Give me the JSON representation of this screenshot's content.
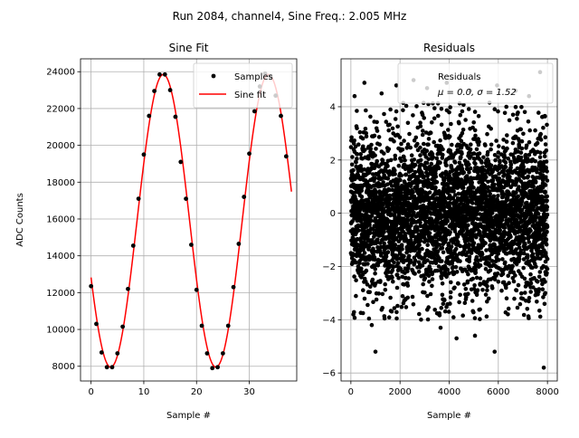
{
  "suptitle": "Run 2084, channel4, Sine Freq.: 2.005 MHz",
  "chart_data": [
    {
      "type": "line",
      "title": "Sine Fit",
      "xlabel": "Sample #",
      "ylabel": "ADC Counts",
      "xlim": [
        -2,
        39
      ],
      "ylim": [
        7200,
        24700
      ],
      "xticks": [
        0,
        10,
        20,
        30
      ],
      "yticks": [
        8000,
        10000,
        12000,
        14000,
        16000,
        18000,
        20000,
        22000,
        24000
      ],
      "grid": true,
      "legend_position": "top-right",
      "series": [
        {
          "name": "Samples",
          "style": "markers",
          "color": "#000000",
          "x": [
            0,
            1,
            2,
            3,
            4,
            5,
            6,
            7,
            8,
            9,
            10,
            11,
            12,
            13,
            14,
            15,
            16,
            17,
            18,
            19,
            20,
            21,
            22,
            23,
            24,
            25,
            26,
            27,
            28,
            29,
            30,
            31,
            32,
            33,
            34,
            35,
            36,
            37
          ],
          "y": [
            12350,
            10300,
            8750,
            7950,
            7950,
            8700,
            10150,
            12200,
            14550,
            17100,
            19500,
            21600,
            22950,
            23850,
            23850,
            23000,
            21550,
            19100,
            17100,
            14600,
            12150,
            10200,
            8700,
            7900,
            7950,
            8700,
            10200,
            12300,
            14650,
            17200,
            19550,
            21850,
            23200,
            23900,
            23750,
            22700,
            21600,
            19400
          ]
        },
        {
          "name": "Sine fit",
          "style": "line",
          "color": "#ff0000",
          "model": {
            "offset": 15900,
            "amplitude": 7950,
            "period": 19.95,
            "peak_at": 13.7
          },
          "x_range": [
            0,
            38
          ]
        }
      ]
    },
    {
      "type": "scatter",
      "title": "Residuals",
      "xlabel": "Sample #",
      "ylabel": "",
      "xlim": [
        -400,
        8400
      ],
      "ylim": [
        -6.3,
        5.8
      ],
      "xticks": [
        0,
        2000,
        4000,
        6000,
        8000
      ],
      "yticks": [
        -6,
        -4,
        -2,
        0,
        2,
        4
      ],
      "grid": true,
      "legend_position": "top-right",
      "series": [
        {
          "name": "Residuals",
          "color": "#000000",
          "count": 8000,
          "mean": 0.0,
          "sigma": 1.52,
          "extremes": [
            {
              "x": 150,
              "y": 4.4
            },
            {
              "x": 550,
              "y": 4.9
            },
            {
              "x": 1250,
              "y": 4.5
            },
            {
              "x": 1850,
              "y": 4.8
            },
            {
              "x": 2550,
              "y": 5.0
            },
            {
              "x": 3100,
              "y": 4.7
            },
            {
              "x": 3900,
              "y": 4.9
            },
            {
              "x": 4850,
              "y": 4.6
            },
            {
              "x": 5950,
              "y": 4.8
            },
            {
              "x": 6700,
              "y": 4.6
            },
            {
              "x": 7250,
              "y": 4.4
            },
            {
              "x": 7700,
              "y": 5.3
            },
            {
              "x": 1000,
              "y": -5.2
            },
            {
              "x": 5850,
              "y": -5.2
            },
            {
              "x": 7850,
              "y": -5.8
            },
            {
              "x": 100,
              "y": -3.8
            },
            {
              "x": 850,
              "y": -4.2
            },
            {
              "x": 4300,
              "y": -4.7
            },
            {
              "x": 5050,
              "y": -4.6
            },
            {
              "x": 3650,
              "y": -4.3
            }
          ]
        }
      ],
      "legend_label": "Residuals",
      "legend_stat_text": "μ = 0.0, σ = 1.52"
    }
  ]
}
